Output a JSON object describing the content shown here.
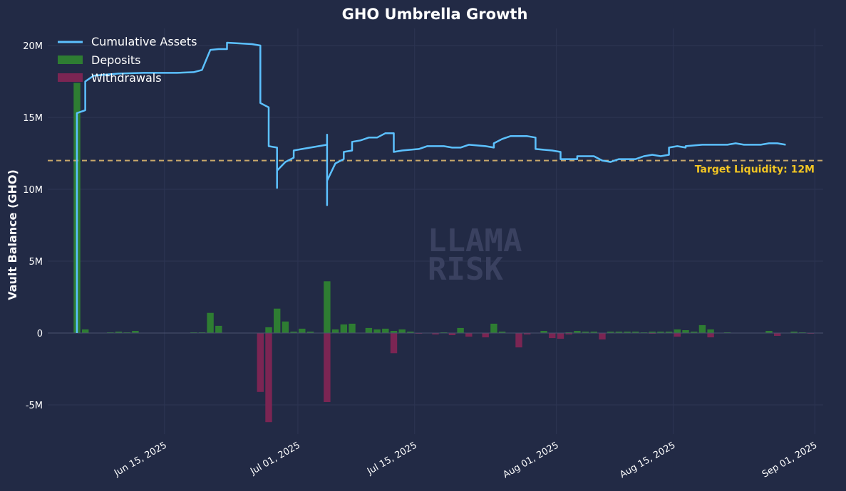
{
  "chart_data": {
    "type": "bar",
    "title": "GHO Umbrella Growth",
    "ylabel": "Vault Balance (GHO)",
    "xlabel": "",
    "ylim": [
      -7500000,
      21000000
    ],
    "xlim": [
      "2025-06-01",
      "2025-09-02"
    ],
    "y_ticks": [
      {
        "value": -5000000,
        "label": "-5M"
      },
      {
        "value": 0,
        "label": "0"
      },
      {
        "value": 5000000,
        "label": "5M"
      },
      {
        "value": 10000000,
        "label": "10M"
      },
      {
        "value": 15000000,
        "label": "15M"
      },
      {
        "value": 20000000,
        "label": "20M"
      }
    ],
    "x_ticks": [
      {
        "date": "2025-06-15",
        "label": "Jun 15, 2025"
      },
      {
        "date": "2025-07-01",
        "label": "Jul 01, 2025"
      },
      {
        "date": "2025-07-15",
        "label": "Jul 15, 2025"
      },
      {
        "date": "2025-08-01",
        "label": "Aug 01, 2025"
      },
      {
        "date": "2025-08-15",
        "label": "Aug 15, 2025"
      },
      {
        "date": "2025-09-01",
        "label": "Sep 01, 2025"
      }
    ],
    "grid": true,
    "legend_position": "top-left",
    "reference_line": {
      "value": 12000000,
      "label": "Target Liquidity: 12M",
      "color": "#c9a96b"
    },
    "watermark": [
      "LLAMA",
      "RISK"
    ],
    "colors": {
      "background": "#222a45",
      "cumulative": "#5cc1ff",
      "deposits": "#2e7d32",
      "withdrawals": "#7b2553",
      "annotation": "#f3c623",
      "grid": "#2d3553",
      "watermark": "#3a4160"
    },
    "series": [
      {
        "name": "Cumulative Assets",
        "type": "line",
        "points": [
          [
            "2025-06-04",
            0
          ],
          [
            "2025-06-04",
            8000000
          ],
          [
            "2025-06-04",
            15300000
          ],
          [
            "2025-06-05",
            15500000
          ],
          [
            "2025-06-05",
            17400000
          ],
          [
            "2025-06-05",
            17500000
          ],
          [
            "2025-06-06",
            17900000
          ],
          [
            "2025-06-08",
            18000000
          ],
          [
            "2025-06-09",
            18050000
          ],
          [
            "2025-06-12",
            18100000
          ],
          [
            "2025-06-16",
            18100000
          ],
          [
            "2025-06-18",
            18150000
          ],
          [
            "2025-06-19",
            18300000
          ],
          [
            "2025-06-20",
            19700000
          ],
          [
            "2025-06-21",
            19750000
          ],
          [
            "2025-06-22",
            19750000
          ],
          [
            "2025-06-22",
            20200000
          ],
          [
            "2025-06-25",
            20100000
          ],
          [
            "2025-06-26",
            20000000
          ],
          [
            "2025-06-26",
            19000000
          ],
          [
            "2025-06-26",
            16000000
          ],
          [
            "2025-06-27",
            15700000
          ],
          [
            "2025-06-27",
            13000000
          ],
          [
            "2025-06-28",
            12900000
          ],
          [
            "2025-06-28",
            10100000
          ],
          [
            "2025-06-28",
            11300000
          ],
          [
            "2025-06-29",
            11900000
          ],
          [
            "2025-06-30",
            12200000
          ],
          [
            "2025-06-30",
            12700000
          ],
          [
            "2025-07-01",
            12800000
          ],
          [
            "2025-07-02",
            12900000
          ],
          [
            "2025-07-03",
            13000000
          ],
          [
            "2025-07-04",
            13100000
          ],
          [
            "2025-07-04",
            13800000
          ],
          [
            "2025-07-04",
            12400000
          ],
          [
            "2025-07-04",
            8900000
          ],
          [
            "2025-07-04",
            10600000
          ],
          [
            "2025-07-05",
            11800000
          ],
          [
            "2025-07-06",
            12100000
          ],
          [
            "2025-07-06",
            12600000
          ],
          [
            "2025-07-07",
            12700000
          ],
          [
            "2025-07-07",
            13300000
          ],
          [
            "2025-07-08",
            13400000
          ],
          [
            "2025-07-09",
            13600000
          ],
          [
            "2025-07-10",
            13600000
          ],
          [
            "2025-07-11",
            13900000
          ],
          [
            "2025-07-12",
            13900000
          ],
          [
            "2025-07-12",
            12600000
          ],
          [
            "2025-07-13",
            12700000
          ],
          [
            "2025-07-15",
            12800000
          ],
          [
            "2025-07-16",
            13000000
          ],
          [
            "2025-07-18",
            13000000
          ],
          [
            "2025-07-19",
            12900000
          ],
          [
            "2025-07-20",
            12900000
          ],
          [
            "2025-07-21",
            13100000
          ],
          [
            "2025-07-23",
            13000000
          ],
          [
            "2025-07-24",
            12900000
          ],
          [
            "2025-07-24",
            13200000
          ],
          [
            "2025-07-25",
            13500000
          ],
          [
            "2025-07-26",
            13700000
          ],
          [
            "2025-07-28",
            13700000
          ],
          [
            "2025-07-29",
            13600000
          ],
          [
            "2025-07-29",
            12800000
          ],
          [
            "2025-07-31",
            12700000
          ],
          [
            "2025-08-01",
            12600000
          ],
          [
            "2025-08-01",
            12100000
          ],
          [
            "2025-08-03",
            12100000
          ],
          [
            "2025-08-03",
            12300000
          ],
          [
            "2025-08-05",
            12300000
          ],
          [
            "2025-08-06",
            12000000
          ],
          [
            "2025-08-07",
            11900000
          ],
          [
            "2025-08-08",
            12100000
          ],
          [
            "2025-08-10",
            12100000
          ],
          [
            "2025-08-11",
            12300000
          ],
          [
            "2025-08-12",
            12400000
          ],
          [
            "2025-08-13",
            12300000
          ],
          [
            "2025-08-14",
            12400000
          ],
          [
            "2025-08-14",
            12900000
          ],
          [
            "2025-08-15",
            13000000
          ],
          [
            "2025-08-16",
            12900000
          ],
          [
            "2025-08-16",
            13000000
          ],
          [
            "2025-08-18",
            13100000
          ],
          [
            "2025-08-20",
            13100000
          ],
          [
            "2025-08-21",
            13100000
          ],
          [
            "2025-08-22",
            13200000
          ],
          [
            "2025-08-23",
            13100000
          ],
          [
            "2025-08-25",
            13100000
          ],
          [
            "2025-08-26",
            13200000
          ],
          [
            "2025-08-27",
            13200000
          ],
          [
            "2025-08-28",
            13100000
          ]
        ]
      },
      {
        "name": "Deposits",
        "type": "bar",
        "points": [
          [
            "2025-06-04",
            17400000
          ],
          [
            "2025-06-05",
            250000
          ],
          [
            "2025-06-08",
            50000
          ],
          [
            "2025-06-09",
            100000
          ],
          [
            "2025-06-10",
            50000
          ],
          [
            "2025-06-11",
            150000
          ],
          [
            "2025-06-18",
            50000
          ],
          [
            "2025-06-19",
            50000
          ],
          [
            "2025-06-20",
            1400000
          ],
          [
            "2025-06-21",
            500000
          ],
          [
            "2025-06-27",
            400000
          ],
          [
            "2025-06-28",
            1700000
          ],
          [
            "2025-06-29",
            800000
          ],
          [
            "2025-06-30",
            100000
          ],
          [
            "2025-07-01",
            300000
          ],
          [
            "2025-07-02",
            100000
          ],
          [
            "2025-07-04",
            3600000
          ],
          [
            "2025-07-05",
            250000
          ],
          [
            "2025-07-06",
            600000
          ],
          [
            "2025-07-07",
            650000
          ],
          [
            "2025-07-09",
            350000
          ],
          [
            "2025-07-10",
            250000
          ],
          [
            "2025-07-11",
            300000
          ],
          [
            "2025-07-12",
            150000
          ],
          [
            "2025-07-13",
            250000
          ],
          [
            "2025-07-14",
            100000
          ],
          [
            "2025-07-18",
            50000
          ],
          [
            "2025-07-20",
            350000
          ],
          [
            "2025-07-24",
            650000
          ],
          [
            "2025-07-25",
            100000
          ],
          [
            "2025-07-30",
            150000
          ],
          [
            "2025-08-02",
            50000
          ],
          [
            "2025-08-03",
            150000
          ],
          [
            "2025-08-04",
            100000
          ],
          [
            "2025-08-05",
            100000
          ],
          [
            "2025-08-07",
            100000
          ],
          [
            "2025-08-08",
            100000
          ],
          [
            "2025-08-09",
            100000
          ],
          [
            "2025-08-10",
            100000
          ],
          [
            "2025-08-11",
            50000
          ],
          [
            "2025-08-12",
            100000
          ],
          [
            "2025-08-13",
            100000
          ],
          [
            "2025-08-14",
            100000
          ],
          [
            "2025-08-15",
            250000
          ],
          [
            "2025-08-16",
            200000
          ],
          [
            "2025-08-17",
            100000
          ],
          [
            "2025-08-18",
            550000
          ],
          [
            "2025-08-19",
            250000
          ],
          [
            "2025-08-21",
            50000
          ],
          [
            "2025-08-26",
            150000
          ],
          [
            "2025-08-29",
            100000
          ],
          [
            "2025-08-30",
            50000
          ]
        ]
      },
      {
        "name": "Withdrawals",
        "type": "bar",
        "points": [
          [
            "2025-06-26",
            -4100000
          ],
          [
            "2025-06-27",
            -6200000
          ],
          [
            "2025-07-04",
            -4800000
          ],
          [
            "2025-07-12",
            -1400000
          ],
          [
            "2025-07-15",
            -50000
          ],
          [
            "2025-07-17",
            -100000
          ],
          [
            "2025-07-19",
            -150000
          ],
          [
            "2025-07-21",
            -250000
          ],
          [
            "2025-07-23",
            -300000
          ],
          [
            "2025-07-27",
            -1000000
          ],
          [
            "2025-07-28",
            -100000
          ],
          [
            "2025-07-31",
            -350000
          ],
          [
            "2025-08-01",
            -400000
          ],
          [
            "2025-08-02",
            -100000
          ],
          [
            "2025-08-06",
            -450000
          ],
          [
            "2025-08-12",
            -50000
          ],
          [
            "2025-08-15",
            -250000
          ],
          [
            "2025-08-19",
            -300000
          ],
          [
            "2025-08-27",
            -200000
          ],
          [
            "2025-08-31",
            -50000
          ]
        ]
      }
    ]
  }
}
